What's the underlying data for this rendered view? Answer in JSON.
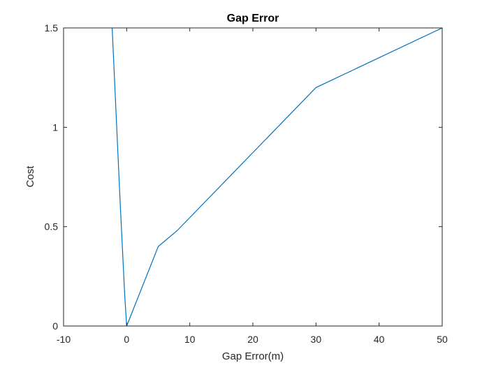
{
  "chart_data": {
    "type": "line",
    "title": "Gap Error",
    "xlabel": "Gap Error(m)",
    "ylabel": "Cost",
    "xlim": [
      -10,
      50
    ],
    "ylim": [
      0,
      1.5
    ],
    "xticks": [
      -10,
      0,
      10,
      20,
      30,
      40,
      50
    ],
    "yticks": [
      0,
      0.5,
      1,
      1.5
    ],
    "xtick_labels": [
      "-10",
      "0",
      "10",
      "20",
      "30",
      "40",
      "50"
    ],
    "ytick_labels": [
      "0",
      "0.5",
      "1",
      "1.5"
    ],
    "grid": false,
    "series": [
      {
        "color": "#0072BD",
        "x": [
          -2.3,
          -1.0,
          -0.3,
          0,
          5,
          8,
          30,
          50
        ],
        "y": [
          1.5,
          0.6,
          0.15,
          0,
          0.4,
          0.48,
          1.2,
          1.5
        ]
      }
    ]
  }
}
